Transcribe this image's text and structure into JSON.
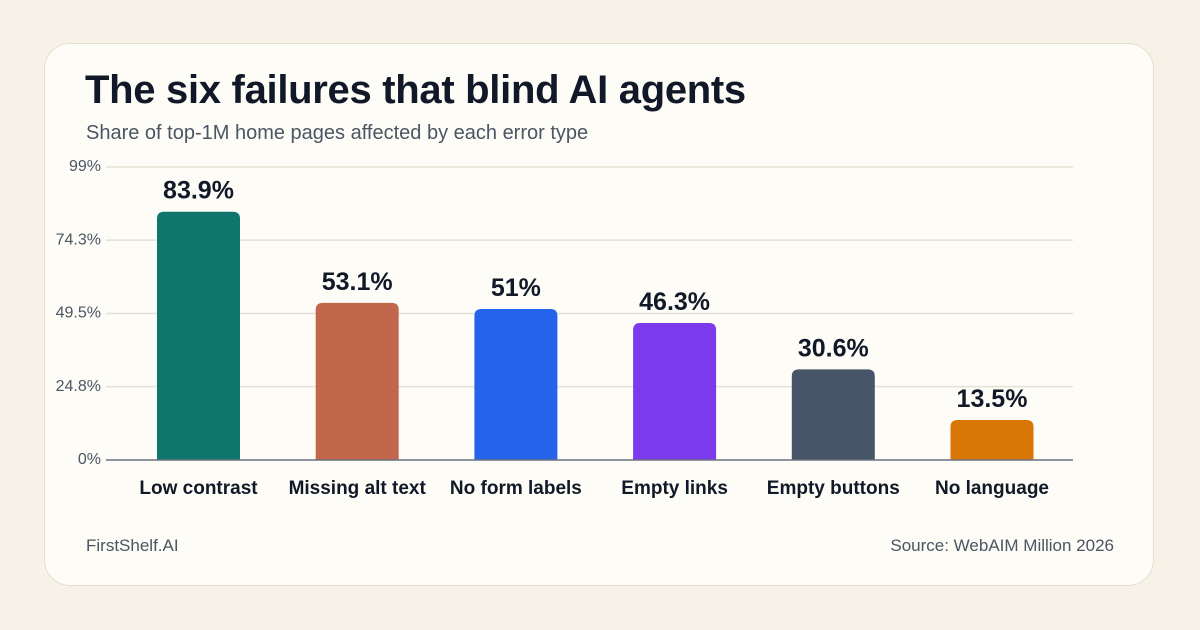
{
  "card": {
    "title": "The six failures that blind AI agents",
    "subtitle": "Share of top-1M home pages affected by each error type",
    "brand": "FirstShelf.AI",
    "source": "Source: WebAIM Million 2026"
  },
  "chart_data": {
    "type": "bar",
    "title": "The six failures that blind AI agents",
    "subtitle": "Share of top-1M home pages affected by each error type",
    "xlabel": "",
    "ylabel": "",
    "ylim": [
      0,
      99
    ],
    "yticks": [
      "0%",
      "24.8%",
      "49.5%",
      "74.3%",
      "99%"
    ],
    "ytick_values": [
      0,
      24.8,
      49.5,
      74.3,
      99
    ],
    "grid": true,
    "categories": [
      "Low contrast",
      "Missing alt text",
      "No form labels",
      "Empty links",
      "Empty buttons",
      "No language"
    ],
    "values": [
      83.9,
      53.1,
      51,
      46.3,
      30.6,
      13.5
    ],
    "value_labels": [
      "83.9%",
      "53.1%",
      "51%",
      "46.3%",
      "30.6%",
      "13.5%"
    ],
    "colors": [
      "#0f766e",
      "#c2674b",
      "#2563eb",
      "#7c3aed",
      "#475569",
      "#d97706"
    ],
    "gridline_color": "#e5e1d6",
    "axis_color": "#6b7280"
  }
}
